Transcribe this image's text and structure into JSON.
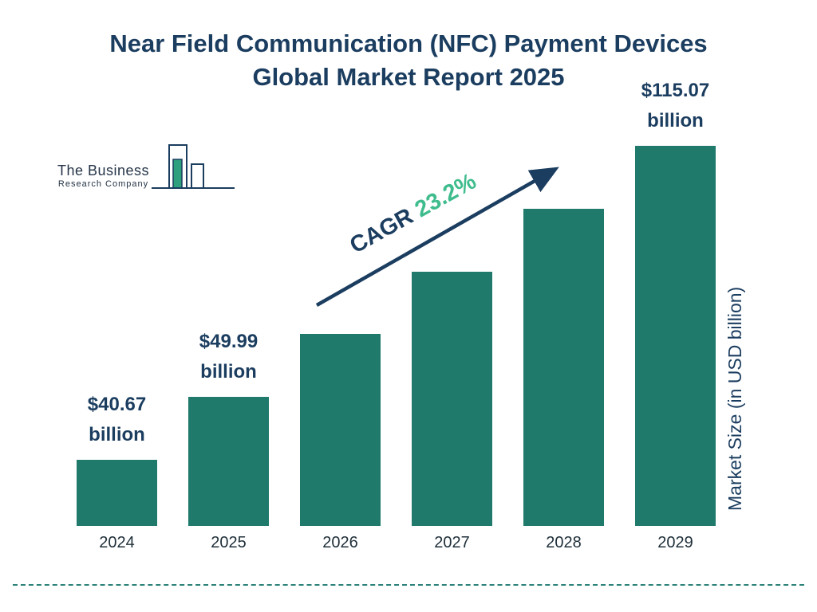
{
  "title": {
    "line1": "Near Field Communication (NFC) Payment Devices",
    "line2": "Global Market Report 2025"
  },
  "logo": {
    "line1": "The Business",
    "line2": "Research Company"
  },
  "cagr": {
    "label": "CAGR",
    "value": "23.2%"
  },
  "y_axis_label": "Market Size (in USD billion)",
  "colors": {
    "bar": "#1f7a6b",
    "title_navy": "#1b3d5f",
    "cagr_green": "#3fbc8d",
    "divider_teal": "#2b8178"
  },
  "chart_data": {
    "type": "bar",
    "title": "Near Field Communication (NFC) Payment Devices Global Market Report 2025",
    "categories": [
      "2024",
      "2025",
      "2026",
      "2027",
      "2028",
      "2029"
    ],
    "values": [
      40.67,
      49.99,
      61.6,
      75.9,
      93.5,
      115.07
    ],
    "value_labels": [
      "$40.67 billion",
      "$49.99 billion",
      null,
      null,
      null,
      "$115.07 billion"
    ],
    "xlabel": "",
    "ylabel": "Market Size (in USD billion)",
    "annotations": [
      "CAGR 23.2%"
    ],
    "legend": "none",
    "grid": "off"
  }
}
